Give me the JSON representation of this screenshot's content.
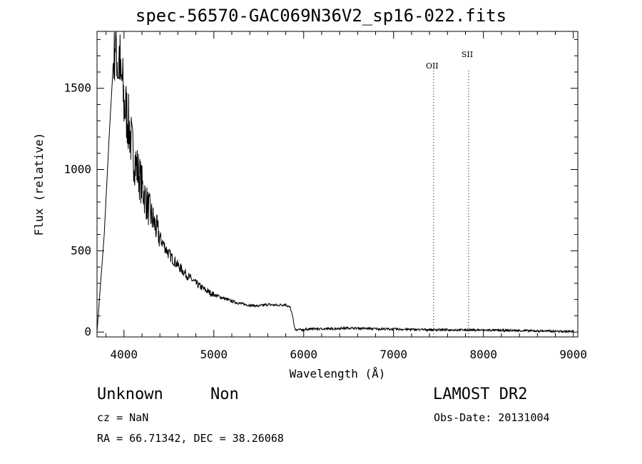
{
  "chart_data": {
    "type": "line",
    "title": "spec-56570-GAC069N36V2_sp16-022.fits",
    "xlabel": "Wavelength (Å)",
    "ylabel": "Flux (relative)",
    "xlim": [
      3700,
      9050
    ],
    "ylim": [
      -30,
      1850
    ],
    "xticks": [
      4000,
      5000,
      6000,
      7000,
      8000,
      9000
    ],
    "yticks": [
      0,
      500,
      1000,
      1500
    ],
    "grid": false,
    "line_markers": [
      {
        "label": "OII",
        "x": 7445
      },
      {
        "label": "SII",
        "x": 7835
      }
    ],
    "series": [
      {
        "x": [
          3700,
          3780,
          3840,
          3880,
          3900,
          3920,
          3935,
          3950,
          3965,
          3980,
          4000,
          4030,
          4060,
          4100,
          4150,
          4200,
          4250,
          4300,
          4350,
          4400,
          4450,
          4500,
          4600,
          4700,
          4800,
          4900,
          5000,
          5100,
          5200,
          5300,
          5400,
          5500,
          5600,
          5700,
          5800,
          5850,
          5880,
          5900,
          5920,
          5950,
          6000,
          6100,
          6300,
          6500,
          6800,
          7000,
          7300,
          7500,
          7800,
          8000,
          8300,
          8500,
          8800,
          9000
        ],
        "y": [
          0,
          600,
          1250,
          1650,
          1820,
          1750,
          1600,
          1720,
          1500,
          1550,
          1400,
          1350,
          1250,
          1100,
          1000,
          900,
          800,
          720,
          650,
          580,
          530,
          480,
          410,
          350,
          300,
          260,
          230,
          210,
          190,
          175,
          165,
          160,
          170,
          165,
          170,
          150,
          90,
          20,
          10,
          15,
          15,
          20,
          20,
          25,
          20,
          18,
          15,
          14,
          13,
          12,
          10,
          8,
          5,
          3
        ]
      }
    ]
  },
  "footer": {
    "class_label": "Unknown",
    "subclass_label": "Non",
    "survey": "LAMOST DR2",
    "cz": "cz = NaN",
    "obs_date": "Obs-Date: 20131004",
    "coords": "RA =  66.71342, DEC =  38.26068"
  }
}
